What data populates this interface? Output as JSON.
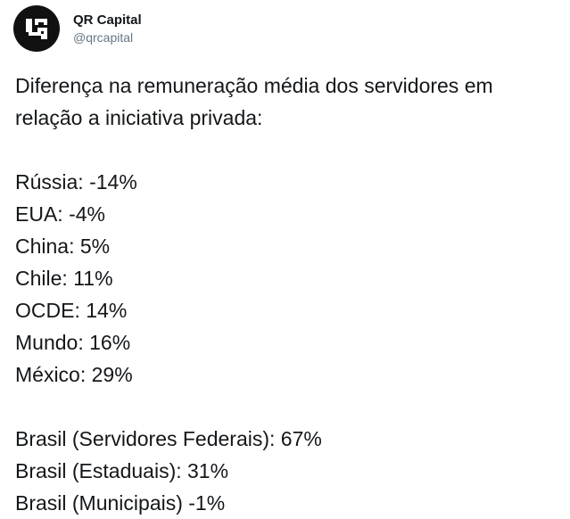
{
  "author": {
    "display_name": "QR Capital",
    "handle": "@qrcapital",
    "avatar_icon": "qr-capital-logo-icon",
    "avatar_bg": "#111111"
  },
  "tweet": {
    "intro_lines": [
      "Diferença na remuneração média dos servidores em",
      "relação a iniciativa privada:"
    ],
    "countries": [
      "Rússia: -14%",
      "EUA: -4%",
      "China: 5%",
      "Chile: 11%",
      "OCDE: 14%",
      "Mundo: 16%",
      "México: 29%"
    ],
    "brazil": [
      "Brasil (Servidores Federais): 67%",
      "Brasil (Estaduais): 31%",
      "Brasil (Municipais) -1%"
    ]
  }
}
